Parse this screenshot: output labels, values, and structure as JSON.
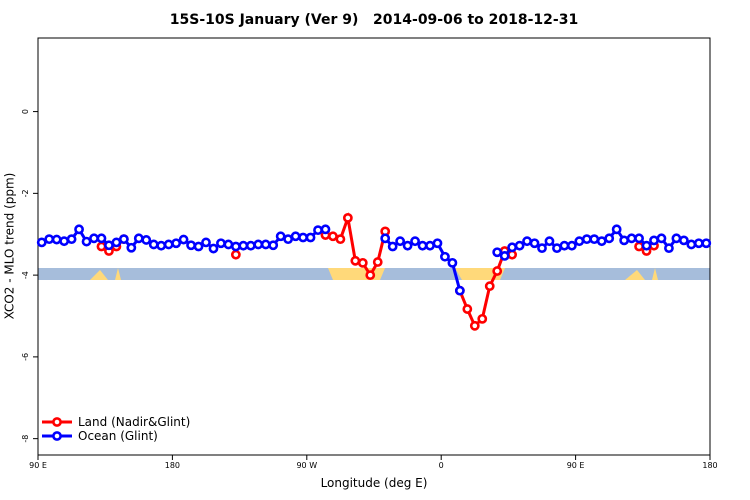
{
  "chart_data": {
    "type": "line",
    "title": "15S-10S January (Ver 9)   2014-09-06 to 2018-12-31",
    "x_label": "Longitude (deg E)",
    "y_label": "XCO2 - MLO trend (ppm)",
    "x": [
      92.5,
      97.5,
      102.5,
      107.5,
      112.5,
      117.5,
      122.5,
      127.5,
      132.5,
      137.5,
      142.5,
      147.5,
      152.5,
      157.5,
      162.5,
      167.5,
      172.5,
      177.5,
      182.5,
      187.5,
      192.5,
      197.5,
      202.5,
      207.5,
      212.5,
      217.5,
      222.5,
      227.5,
      232.5,
      237.5,
      242.5,
      247.5,
      252.5,
      257.5,
      262.5,
      267.5,
      272.5,
      277.5,
      282.5,
      287.5,
      292.5,
      297.5,
      302.5,
      307.5,
      312.5,
      317.5,
      322.5,
      327.5,
      332.5,
      337.5,
      342.5,
      347.5,
      352.5,
      357.5,
      362.5,
      367.5,
      372.5,
      377.5,
      382.5,
      387.5,
      392.5,
      397.5,
      402.5,
      407.5,
      412.5,
      417.5,
      422.5,
      427.5,
      432.5,
      437.5,
      442.5,
      447.5,
      452.5,
      457.5,
      462.5,
      467.5,
      472.5,
      477.5,
      482.5,
      487.5,
      492.5,
      497.5,
      502.5,
      507.5,
      512.5,
      517.5,
      522.5,
      527.5,
      532.5,
      537.5
    ],
    "series": [
      {
        "name": "Land (Nadir&Glint)",
        "color": "#ff0000",
        "values": [
          null,
          null,
          null,
          null,
          null,
          null,
          null,
          null,
          -3.3,
          -3.41,
          -3.3,
          -3.12,
          null,
          null,
          null,
          null,
          null,
          null,
          null,
          null,
          null,
          null,
          null,
          null,
          null,
          null,
          -3.5,
          null,
          null,
          null,
          null,
          null,
          null,
          null,
          null,
          null,
          null,
          null,
          -3.02,
          -3.05,
          -3.12,
          -2.6,
          -3.65,
          -3.7,
          -4.0,
          -3.68,
          -2.93,
          null,
          null,
          null,
          null,
          null,
          null,
          null,
          null,
          null,
          -4.38,
          -4.83,
          -5.24,
          -5.07,
          -4.27,
          -3.9,
          -3.41,
          -3.5,
          null,
          null,
          null,
          null,
          null,
          null,
          null,
          null,
          null,
          null,
          null,
          null,
          null,
          null,
          null,
          null,
          -3.3,
          -3.41,
          -3.28,
          null,
          null,
          null,
          null,
          null,
          null,
          null
        ]
      },
      {
        "name": "Ocean (Glint)",
        "color": "#0000ff",
        "values": [
          -3.2,
          -3.12,
          -3.13,
          -3.17,
          -3.12,
          -2.88,
          -3.18,
          -3.1,
          -3.1,
          -3.27,
          -3.2,
          -3.12,
          -3.33,
          -3.1,
          -3.14,
          -3.25,
          -3.28,
          -3.25,
          -3.22,
          -3.13,
          -3.27,
          -3.3,
          -3.2,
          -3.35,
          -3.22,
          -3.25,
          -3.3,
          -3.28,
          -3.28,
          -3.25,
          -3.25,
          -3.27,
          -3.05,
          -3.12,
          -3.05,
          -3.08,
          -3.08,
          -2.9,
          -2.88,
          null,
          null,
          null,
          null,
          null,
          null,
          null,
          -3.1,
          -3.3,
          -3.17,
          -3.28,
          -3.17,
          -3.28,
          -3.28,
          -3.22,
          -3.55,
          -3.7,
          -4.38,
          null,
          null,
          null,
          null,
          -3.44,
          -3.53,
          -3.32,
          -3.28,
          -3.17,
          -3.22,
          -3.34,
          -3.17,
          -3.34,
          -3.28,
          -3.28,
          -3.17,
          -3.12,
          -3.12,
          -3.17,
          -3.1,
          -2.88,
          -3.15,
          -3.1,
          -3.1,
          -3.28,
          -3.15,
          -3.1,
          -3.34,
          -3.1,
          -3.15,
          -3.25,
          -3.22,
          -3.22
        ]
      }
    ],
    "xlim": [
      90,
      540
    ],
    "xticks": [
      {
        "value": 90,
        "label": "90 E"
      },
      {
        "value": 180,
        "label": "180"
      },
      {
        "value": 270,
        "label": "90 W"
      },
      {
        "value": 360,
        "label": "0"
      },
      {
        "value": 450,
        "label": "90 E"
      },
      {
        "value": 540,
        "label": "180"
      }
    ],
    "ylim": [
      -8.4,
      1.8
    ],
    "yticks": [
      0,
      -2,
      -4,
      -6,
      -8
    ],
    "legend": "bottom-left"
  }
}
